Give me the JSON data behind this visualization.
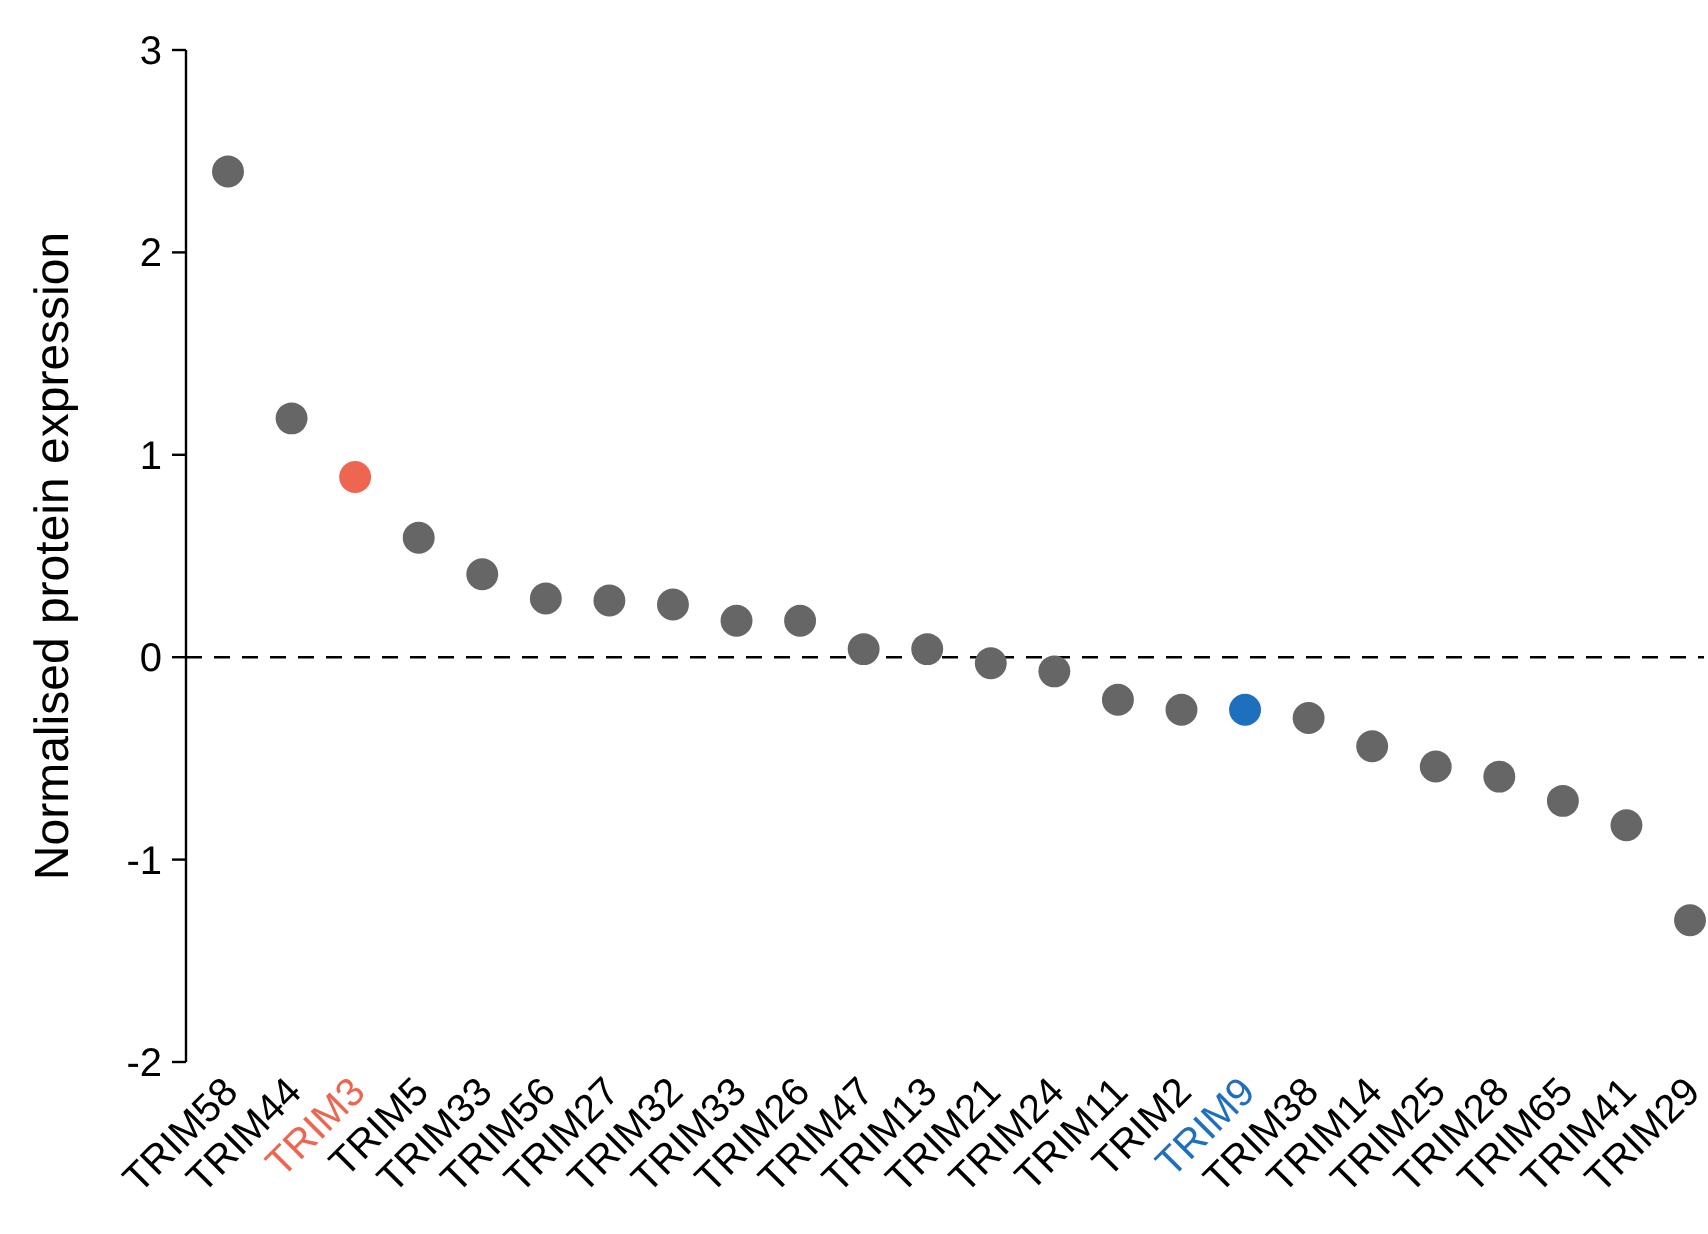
{
  "chart_data": {
    "type": "scatter",
    "ylabel": "Normalised protein expression",
    "categories": [
      "TRIM58",
      "TRIM44",
      "TRIM3",
      "TRIM5",
      "TRIM33",
      "TRIM56",
      "TRIM27",
      "TRIM32",
      "TRIM33",
      "TRIM26",
      "TRIM47",
      "TRIM13",
      "TRIM21",
      "TRIM24",
      "TRIM11",
      "TRIM2",
      "TRIM9",
      "TRIM38",
      "TRIM14",
      "TRIM25",
      "TRIM28",
      "TRIM65",
      "TRIM41",
      "TRIM29"
    ],
    "series": [
      {
        "color": "#666666",
        "values": [
          2.4,
          1.18,
          0.89,
          0.59,
          0.41,
          0.29,
          0.28,
          0.26,
          0.18,
          0.18,
          0.04,
          0.04,
          -0.03,
          -0.07,
          -0.21,
          -0.26,
          -0.26,
          -0.3,
          -0.44,
          -0.54,
          -0.59,
          -0.71,
          -0.83,
          -1.3
        ],
        "colors": [
          "#666666",
          "#666666",
          "#ee6650",
          "#666666",
          "#666666",
          "#666666",
          "#666666",
          "#666666",
          "#666666",
          "#666666",
          "#666666",
          "#666666",
          "#666666",
          "#666666",
          "#666666",
          "#666666",
          "#1f6fbf",
          "#666666",
          "#666666",
          "#666666",
          "#666666",
          "#666666",
          "#666666",
          "#666666"
        ]
      }
    ],
    "ylim": [
      -2,
      3
    ],
    "yticks": [
      -2,
      -1,
      0,
      1,
      2,
      3
    ],
    "marker": "circle",
    "grid": false,
    "ref_lines": [
      {
        "axis": "y",
        "value": 0,
        "line_style": "dashed",
        "color": "#000000"
      }
    ]
  }
}
